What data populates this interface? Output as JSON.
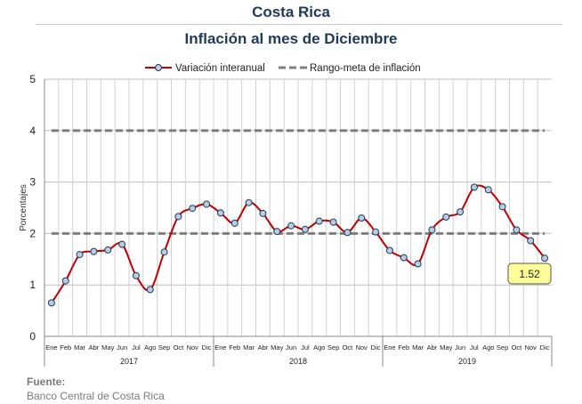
{
  "header": {
    "title": "Costa Rica",
    "subtitle": "Inflación al mes de Diciembre"
  },
  "footer": {
    "source_label": "Fuente:",
    "source_text": "Banco Central de Costa Rica"
  },
  "colors": {
    "series": "#c00000",
    "marker_fill": "#b8cce4",
    "marker_stroke": "#1f3a5a",
    "target": "#7f7f7f",
    "callout_fill": "#ffff99"
  },
  "chart_data": {
    "type": "line",
    "ylabel": "Porcentajes",
    "ylim": [
      0,
      5
    ],
    "yticks": [
      "0",
      "1",
      "2",
      "3",
      "4",
      "5"
    ],
    "grid": true,
    "legend_position": "top",
    "categories": [
      "Ene",
      "Feb",
      "Mar",
      "Abr",
      "May",
      "Jun",
      "Jul",
      "Ago",
      "Sep",
      "Oct",
      "Nov",
      "Dic",
      "Ene",
      "Feb",
      "Mar",
      "Abr",
      "May",
      "Jun",
      "Jul",
      "Ago",
      "Sep",
      "Oct",
      "Nov",
      "Dic",
      "Ene",
      "Feb",
      "Mar",
      "Abr",
      "May",
      "Jun",
      "Jul",
      "Ago",
      "Sep",
      "Oct",
      "Nov",
      "Dic"
    ],
    "years": [
      "2017",
      "2018",
      "2019"
    ],
    "series": [
      {
        "name": "Variación interanual",
        "values": [
          0.65,
          1.08,
          1.59,
          1.65,
          1.68,
          1.79,
          1.18,
          0.91,
          1.64,
          2.33,
          2.49,
          2.57,
          2.4,
          2.2,
          2.6,
          2.39,
          2.04,
          2.15,
          2.08,
          2.24,
          2.22,
          2.02,
          2.3,
          2.03,
          1.67,
          1.53,
          1.41,
          2.07,
          2.32,
          2.42,
          2.9,
          2.85,
          2.52,
          2.07,
          1.86,
          1.52
        ]
      }
    ],
    "target_band": {
      "name": "Rango-meta de inflación",
      "lower": 2,
      "upper": 4
    },
    "annotation": "1.52"
  }
}
